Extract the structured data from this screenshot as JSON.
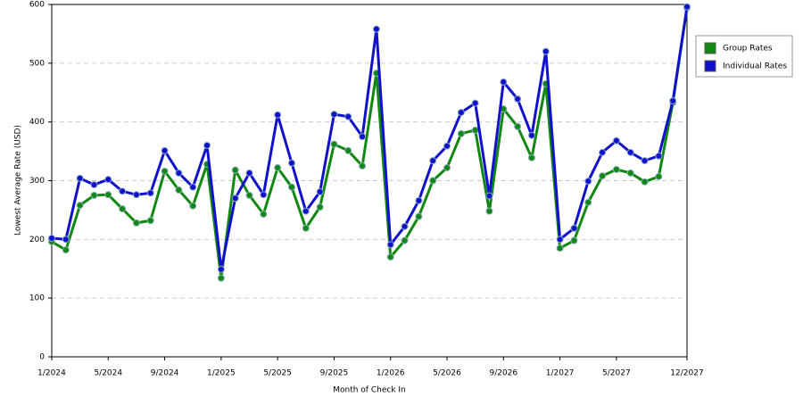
{
  "chart_data": {
    "type": "line",
    "y_label": "Lowest Average Rate (USD)",
    "x_label": "Month of Check In",
    "categories": [
      "1/2024",
      null,
      null,
      null,
      "5/2024",
      null,
      null,
      null,
      "9/2024",
      null,
      null,
      null,
      "1/2025",
      null,
      null,
      null,
      "5/2025",
      null,
      null,
      null,
      "9/2025",
      null,
      null,
      null,
      "1/2026",
      null,
      null,
      null,
      "5/2026",
      null,
      null,
      null,
      "9/2026",
      null,
      null,
      null,
      "1/2027",
      null,
      null,
      null,
      "5/2027",
      null,
      null,
      null,
      null,
      "12/2027"
    ],
    "series": [
      {
        "name": "Group Rates",
        "color": "#118811",
        "values": [
          196,
          182,
          258,
          275,
          276,
          252,
          228,
          232,
          316,
          284,
          257,
          328,
          134,
          318,
          275,
          243,
          322,
          289,
          219,
          255,
          362,
          351,
          325,
          483,
          170,
          198,
          239,
          300,
          322,
          380,
          386,
          248,
          422,
          392,
          339,
          465,
          185,
          198,
          263,
          308,
          319,
          313,
          298,
          307,
          433,
          594
        ]
      },
      {
        "name": "Individual Rates",
        "color": "#1111cc",
        "values": [
          202,
          200,
          304,
          293,
          302,
          282,
          276,
          279,
          351,
          313,
          289,
          360,
          149,
          270,
          313,
          276,
          412,
          330,
          248,
          281,
          413,
          409,
          375,
          558,
          191,
          222,
          266,
          334,
          359,
          416,
          432,
          274,
          468,
          439,
          377,
          520,
          200,
          219,
          299,
          348,
          368,
          348,
          334,
          342,
          436,
          596
        ]
      }
    ],
    "ylim": [
      0,
      600
    ],
    "yticks": [
      0,
      100,
      200,
      300,
      400,
      500,
      600
    ],
    "grid": true,
    "legend": "top-right"
  }
}
